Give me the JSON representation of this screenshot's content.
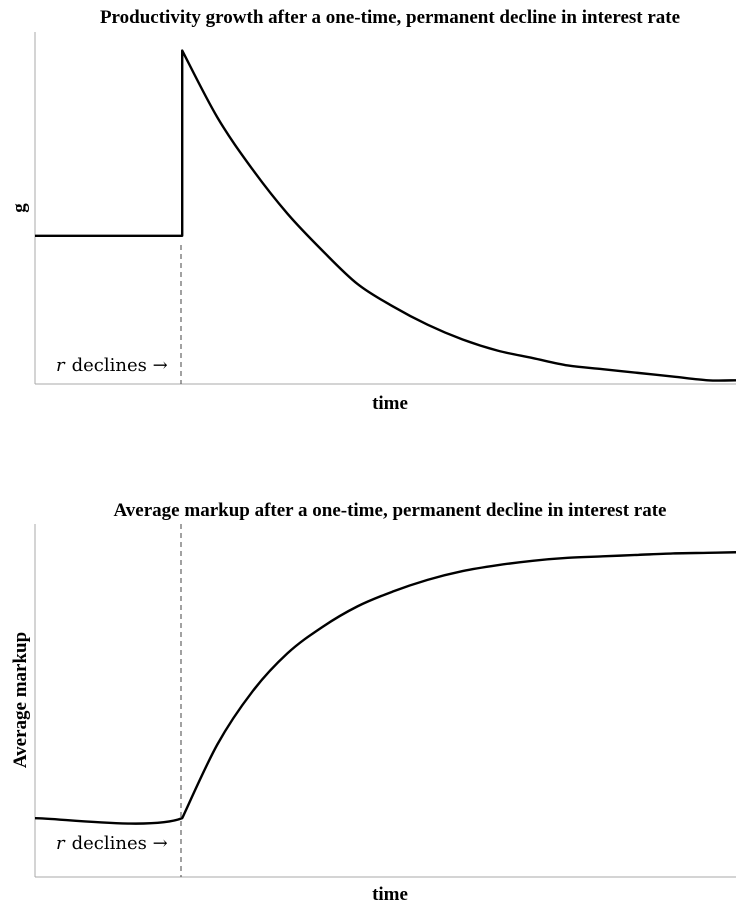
{
  "chart_data": [
    {
      "type": "line",
      "title": "Productivity growth after a one-time, permanent decline in interest rate",
      "xlabel": "time",
      "ylabel": "g",
      "shock_x": 0.21,
      "annotation": {
        "r": "r",
        "text": "declines →"
      },
      "series": [
        {
          "x": [
            0,
            0.21,
            0.21,
            0.26,
            0.31,
            0.36,
            0.41,
            0.46,
            0.51,
            0.56,
            0.61,
            0.66,
            0.71,
            0.76,
            0.81,
            0.86,
            0.91,
            0.96,
            1.0
          ],
          "y": [
            0.6,
            0.6,
            1.1,
            0.92,
            0.78,
            0.66,
            0.56,
            0.47,
            0.41,
            0.36,
            0.32,
            0.29,
            0.27,
            0.25,
            0.24,
            0.23,
            0.22,
            0.21,
            0.21
          ]
        }
      ],
      "ylim": [
        0.2,
        1.15
      ],
      "xlim": [
        0,
        1
      ],
      "grid": false
    },
    {
      "type": "line",
      "title": "Average markup after a one-time, permanent decline in interest rate",
      "xlabel": "time",
      "ylabel": "Average markup",
      "shock_x": 0.21,
      "annotation": {
        "r": "r",
        "text": "declines →"
      },
      "series": [
        {
          "x": [
            0,
            0.21,
            0.26,
            0.31,
            0.36,
            0.41,
            0.46,
            0.51,
            0.56,
            0.61,
            0.66,
            0.71,
            0.76,
            0.81,
            0.86,
            0.91,
            0.96,
            1.0
          ],
          "y": [
            0.2,
            0.2,
            0.45,
            0.63,
            0.76,
            0.85,
            0.92,
            0.97,
            1.01,
            1.04,
            1.06,
            1.075,
            1.085,
            1.09,
            1.095,
            1.1,
            1.102,
            1.104
          ]
        }
      ],
      "ylim": [
        0.0,
        1.2
      ],
      "xlim": [
        0,
        1
      ],
      "grid": false
    }
  ]
}
